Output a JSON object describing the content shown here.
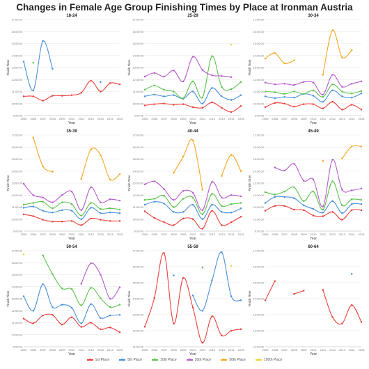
{
  "title": "Changes in Female Age Group Finishing Times by Place at Ironman Austria",
  "colors": {
    "1st Place": "#e8413c",
    "5th Place": "#4a90d9",
    "10th Place": "#5cc24d",
    "20th Place": "#b65dcc",
    "50th Place": "#f5a623",
    "100th Place": "#f0d43a"
  },
  "legend": [
    "1st Place",
    "5th Place",
    "10th Place",
    "20th Place",
    "50th Place",
    "100th Place"
  ],
  "chart_data": [
    {
      "type": "line",
      "title": "18-24",
      "xlabel": "Year",
      "ylabel": "Finish Time",
      "x": [
        2005,
        2006,
        2007,
        2008,
        2009,
        2010,
        2011,
        2012,
        2013,
        2014,
        2015
      ],
      "ylim": [
        9,
        17
      ],
      "yticks": [
        "9:00:00",
        "10:00:00",
        "11:00:00",
        "12:00:00",
        "13:00:00",
        "14:00:00",
        "15:00:00",
        "16:00:00",
        "17:00:00"
      ],
      "series": [
        {
          "name": "1st Place",
          "values": [
            10.6,
            10.6,
            10.25,
            10.65,
            10.65,
            10.7,
            10.9,
            11.9,
            11.0,
            11.7,
            11.6
          ]
        },
        {
          "name": "5th Place",
          "values": [
            13.5,
            11.1,
            15.2,
            12.9,
            null,
            null,
            null,
            null,
            11.8,
            null,
            null
          ]
        },
        {
          "name": "10th Place",
          "values": [
            null,
            13.4,
            null,
            null,
            null,
            null,
            null,
            null,
            null,
            null,
            null
          ]
        }
      ]
    },
    {
      "type": "line",
      "title": "25-29",
      "xlabel": "Year",
      "ylabel": "Finish Time",
      "x": [
        2005,
        2006,
        2007,
        2008,
        2009,
        2010,
        2011,
        2012,
        2013,
        2014,
        2015
      ],
      "ylim": [
        9,
        17
      ],
      "yticks": [
        "9:00:00",
        "10:00:00",
        "11:00:00",
        "12:00:00",
        "13:00:00",
        "14:00:00",
        "15:00:00",
        "16:00:00",
        "17:00:00"
      ],
      "series": [
        {
          "name": "1st Place",
          "values": [
            9.85,
            9.95,
            10.0,
            9.9,
            9.95,
            9.7,
            9.65,
            10.1,
            9.65,
            9.3,
            9.8
          ]
        },
        {
          "name": "5th Place",
          "values": [
            10.6,
            10.75,
            10.6,
            10.7,
            10.4,
            11.0,
            10.0,
            11.3,
            10.6,
            10.3,
            10.7
          ]
        },
        {
          "name": "10th Place",
          "values": [
            11.15,
            11.5,
            11.15,
            11.0,
            10.45,
            11.85,
            10.5,
            13.95,
            11.4,
            11.2,
            11.8
          ]
        },
        {
          "name": "20th Place",
          "values": [
            12.25,
            12.55,
            12.25,
            12.75,
            11.85,
            13.9,
            12.8,
            12.35,
            12.3,
            12.2,
            null
          ]
        },
        {
          "name": "100th Place",
          "values": [
            null,
            null,
            null,
            null,
            null,
            null,
            null,
            null,
            null,
            14.9,
            null
          ]
        }
      ]
    },
    {
      "type": "line",
      "title": "30-34",
      "xlabel": "Year",
      "ylabel": "Finish Time",
      "x": [
        2005,
        2006,
        2007,
        2008,
        2009,
        2010,
        2011,
        2012,
        2013,
        2014,
        2015
      ],
      "ylim": [
        9,
        17
      ],
      "yticks": [
        "9:00:00",
        "10:00:00",
        "11:00:00",
        "12:00:00",
        "13:00:00",
        "14:00:00",
        "15:00:00",
        "16:00:00",
        "17:00:00"
      ],
      "series": [
        {
          "name": "1st Place",
          "values": [
            9.7,
            10.05,
            10.0,
            9.75,
            9.95,
            9.95,
            9.6,
            10.15,
            9.5,
            9.9,
            9.5
          ]
        },
        {
          "name": "5th Place",
          "values": [
            10.6,
            10.45,
            10.55,
            10.5,
            10.8,
            10.65,
            10.15,
            11.1,
            10.6,
            10.5,
            10.85
          ]
        },
        {
          "name": "10th Place",
          "values": [
            11.0,
            10.95,
            10.8,
            11.0,
            10.8,
            11.1,
            10.55,
            11.6,
            11.0,
            10.85,
            11.05
          ]
        },
        {
          "name": "20th Place",
          "values": [
            11.75,
            11.6,
            11.65,
            11.55,
            11.8,
            11.75,
            10.75,
            12.4,
            11.4,
            11.65,
            11.85
          ]
        },
        {
          "name": "50th Place",
          "values": [
            13.75,
            14.2,
            13.35,
            13.6,
            null,
            null,
            12.4,
            16.1,
            13.85,
            14.45,
            null
          ]
        }
      ]
    },
    {
      "type": "line",
      "title": "35-39",
      "xlabel": "Year",
      "ylabel": "Finish Time",
      "x": [
        2005,
        2006,
        2007,
        2008,
        2009,
        2010,
        2011,
        2012,
        2013,
        2014,
        2015
      ],
      "ylim": [
        9,
        17
      ],
      "yticks": [
        "9:00:00",
        "10:00:00",
        "11:00:00",
        "12:00:00",
        "13:00:00",
        "14:00:00",
        "15:00:00",
        "16:00:00",
        "17:00:00"
      ],
      "series": [
        {
          "name": "1st Place",
          "values": [
            10.4,
            10.25,
            9.95,
            9.8,
            9.8,
            9.85,
            9.5,
            10.05,
            9.95,
            9.85,
            9.85
          ]
        },
        {
          "name": "5th Place",
          "values": [
            10.95,
            11.05,
            10.7,
            10.55,
            10.75,
            10.7,
            10.0,
            10.95,
            10.5,
            10.55,
            10.5
          ]
        },
        {
          "name": "10th Place",
          "values": [
            11.2,
            11.35,
            11.45,
            10.9,
            11.4,
            11.25,
            10.3,
            11.35,
            10.85,
            10.9,
            10.8
          ]
        },
        {
          "name": "20th Place",
          "values": [
            12.95,
            12.0,
            11.8,
            11.4,
            12.0,
            12.3,
            10.75,
            12.65,
            11.4,
            11.65,
            11.55
          ]
        },
        {
          "name": "50th Place",
          "values": [
            null,
            16.8,
            14.4,
            13.95,
            null,
            null,
            13.35,
            15.8,
            15.35,
            13.3,
            13.75
          ]
        }
      ]
    },
    {
      "type": "line",
      "title": "40-44",
      "xlabel": "Year",
      "ylabel": "Finish Time",
      "x": [
        2005,
        2006,
        2007,
        2008,
        2009,
        2010,
        2011,
        2012,
        2013,
        2014,
        2015
      ],
      "ylim": [
        9,
        17
      ],
      "yticks": [
        "9:00:00",
        "10:00:00",
        "11:00:00",
        "12:00:00",
        "13:00:00",
        "14:00:00",
        "15:00:00",
        "16:00:00",
        "17:00:00"
      ],
      "series": [
        {
          "name": "1st Place",
          "values": [
            10.65,
            10.1,
            9.75,
            9.5,
            10.05,
            10.0,
            9.2,
            10.7,
            9.5,
            9.75,
            10.2
          ]
        },
        {
          "name": "5th Place",
          "values": [
            11.2,
            11.45,
            11.3,
            10.6,
            10.6,
            11.2,
            10.0,
            11.2,
            10.6,
            10.55,
            10.9
          ]
        },
        {
          "name": "10th Place",
          "values": [
            11.6,
            11.7,
            11.95,
            11.0,
            11.7,
            11.8,
            10.4,
            12.1,
            11.1,
            11.25,
            11.35
          ]
        },
        {
          "name": "20th Place",
          "values": [
            12.9,
            13.15,
            12.5,
            11.6,
            12.35,
            12.2,
            10.75,
            13.1,
            11.8,
            12.0,
            11.9
          ]
        },
        {
          "name": "50th Place",
          "values": [
            null,
            null,
            null,
            13.85,
            15.2,
            16.55,
            12.45,
            null,
            13.6,
            15.35,
            14.0
          ]
        }
      ]
    },
    {
      "type": "line",
      "title": "45-49",
      "xlabel": "Year",
      "ylabel": "Finish Time",
      "x": [
        2005,
        2006,
        2007,
        2008,
        2009,
        2010,
        2011,
        2012,
        2013,
        2014,
        2015
      ],
      "ylim": [
        9,
        17
      ],
      "yticks": [
        "9:00:00",
        "10:00:00",
        "11:00:00",
        "12:00:00",
        "13:00:00",
        "14:00:00",
        "15:00:00",
        "16:00:00",
        "17:00:00"
      ],
      "series": [
        {
          "name": "1st Place",
          "values": [
            10.7,
            11.1,
            11.1,
            10.8,
            10.75,
            10.3,
            10.25,
            10.6,
            9.95,
            10.75,
            10.75
          ]
        },
        {
          "name": "5th Place",
          "values": [
            11.35,
            11.85,
            11.85,
            11.75,
            11.15,
            10.85,
            10.55,
            11.5,
            10.5,
            11.25,
            11.25
          ]
        },
        {
          "name": "10th Place",
          "values": [
            12.25,
            12.05,
            12.3,
            12.65,
            11.5,
            12.3,
            10.8,
            13.15,
            11.15,
            11.65,
            11.6
          ]
        },
        {
          "name": "20th Place",
          "values": [
            null,
            14.3,
            14.05,
            14.6,
            13.2,
            13.3,
            11.05,
            14.95,
            12.45,
            12.4,
            12.55
          ]
        },
        {
          "name": "50th Place",
          "values": [
            null,
            null,
            null,
            null,
            null,
            null,
            14.85,
            null,
            15.05,
            16.05,
            16.05
          ]
        }
      ]
    },
    {
      "type": "line",
      "title": "50-54",
      "xlabel": "Year",
      "ylabel": "Finish Time",
      "x": [
        2005,
        2006,
        2007,
        2008,
        2009,
        2010,
        2011,
        2012,
        2013,
        2014,
        2015
      ],
      "ylim": [
        9,
        17
      ],
      "yticks": [
        "9:00:00",
        "10:00:00",
        "11:00:00",
        "12:00:00",
        "13:00:00",
        "14:00:00",
        "15:00:00",
        "16:00:00",
        "17:00:00"
      ],
      "series": [
        {
          "name": "1st Place",
          "values": [
            11.35,
            10.95,
            11.6,
            11.65,
            10.85,
            11.45,
            10.65,
            11.0,
            10.45,
            10.6,
            10.2
          ]
        },
        {
          "name": "5th Place",
          "values": [
            13.2,
            12.0,
            14.2,
            12.3,
            12.5,
            12.25,
            10.95,
            12.55,
            11.4,
            11.6,
            11.65
          ]
        },
        {
          "name": "10th Place",
          "values": [
            null,
            null,
            16.6,
            15.05,
            13.85,
            13.8,
            12.45,
            13.9,
            13.05,
            12.3,
            12.5
          ]
        },
        {
          "name": "20th Place",
          "values": [
            null,
            null,
            null,
            null,
            null,
            null,
            14.25,
            15.95,
            15.0,
            13.0,
            13.95
          ]
        },
        {
          "name": "100th Place",
          "values": [
            16.7,
            null,
            null,
            null,
            null,
            null,
            null,
            null,
            null,
            null,
            null
          ]
        }
      ]
    },
    {
      "type": "line",
      "title": "55-59",
      "xlabel": "Year",
      "ylabel": "Finish Time",
      "x": [
        2005,
        2006,
        2007,
        2008,
        2009,
        2010,
        2011,
        2012,
        2013,
        2014,
        2015
      ],
      "ylim": [
        11,
        17
      ],
      "yticks": [
        "11:00:00",
        "12:00:00",
        "13:00:00",
        "14:00:00",
        "15:00:00",
        "16:00:00",
        "17:00:00"
      ],
      "series": [
        {
          "name": "1st Place",
          "values": [
            12.25,
            14.05,
            16.85,
            12.45,
            15.3,
            13.45,
            11.25,
            12.9,
            11.7,
            12.0,
            12.1
          ]
        },
        {
          "name": "5th Place",
          "values": [
            null,
            null,
            null,
            15.45,
            null,
            14.2,
            13.25,
            15.15,
            16.9,
            14.15,
            13.9
          ]
        },
        {
          "name": "10th Place",
          "values": [
            null,
            null,
            null,
            null,
            null,
            null,
            15.95,
            null,
            null,
            null,
            null
          ]
        },
        {
          "name": "100th Place",
          "values": [
            null,
            null,
            null,
            null,
            null,
            null,
            null,
            null,
            null,
            16.05,
            null
          ]
        }
      ]
    },
    {
      "type": "line",
      "title": "60-64",
      "xlabel": "Year",
      "ylabel": "Finish Time",
      "x": [
        2005,
        2006,
        2007,
        2008,
        2009,
        2010,
        2011,
        2012,
        2013,
        2014,
        2015
      ],
      "ylim": [
        11,
        17
      ],
      "yticks": [
        "11:00:00",
        "12:00:00",
        "13:00:00",
        "14:00:00",
        "15:00:00",
        "16:00:00",
        "17:00:00"
      ],
      "series": [
        {
          "name": "1st Place",
          "values": [
            13.9,
            15.1,
            null,
            14.3,
            14.5,
            null,
            14.55,
            12.85,
            12.45,
            13.6,
            12.55
          ]
        },
        {
          "name": "5th Place",
          "values": [
            null,
            null,
            null,
            null,
            null,
            null,
            null,
            null,
            null,
            15.55,
            null
          ]
        }
      ]
    }
  ]
}
